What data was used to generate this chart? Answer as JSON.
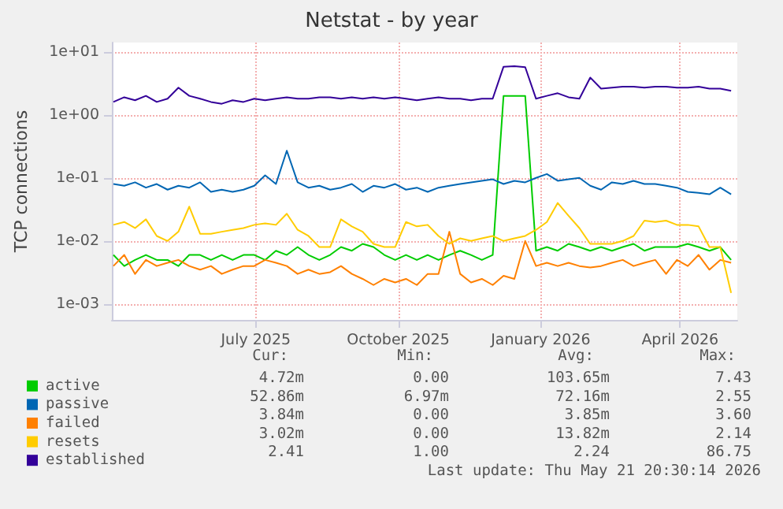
{
  "chart_data": {
    "type": "line",
    "title": "Netstat - by year",
    "ylabel": "TCP connections",
    "log": "y",
    "grid": true,
    "legend": "bottom left",
    "marker": "none",
    "line_style": "solid",
    "xlim": [
      "2025-03-30",
      "2026-05-08"
    ],
    "xticks": [
      {
        "value": "2025-07-01",
        "label": "July 2025"
      },
      {
        "value": "2025-10-01",
        "label": "October 2025"
      },
      {
        "value": "2026-01-01",
        "label": "January 2026"
      },
      {
        "value": "2026-04-01",
        "label": "April 2026"
      }
    ],
    "ylim": [
      0.00056,
      14
    ],
    "yticks": [
      {
        "value": 10,
        "label": "1e+01"
      },
      {
        "value": 1,
        "label": "1e+00"
      },
      {
        "value": 0.1,
        "label": "1e-01"
      },
      {
        "value": 0.01,
        "label": "1e-02"
      },
      {
        "value": 0.001,
        "label": "1e-03"
      }
    ],
    "x": [
      "2025-03-31",
      "2025-04-07",
      "2025-04-14",
      "2025-04-21",
      "2025-04-28",
      "2025-05-05",
      "2025-05-12",
      "2025-05-19",
      "2025-05-26",
      "2025-06-02",
      "2025-06-09",
      "2025-06-16",
      "2025-06-23",
      "2025-06-30",
      "2025-07-07",
      "2025-07-14",
      "2025-07-21",
      "2025-07-28",
      "2025-08-04",
      "2025-08-11",
      "2025-08-18",
      "2025-08-25",
      "2025-09-01",
      "2025-09-08",
      "2025-09-15",
      "2025-09-22",
      "2025-09-29",
      "2025-10-06",
      "2025-10-13",
      "2025-10-20",
      "2025-10-27",
      "2025-11-03",
      "2025-11-10",
      "2025-11-17",
      "2025-11-24",
      "2025-12-01",
      "2025-12-08",
      "2025-12-15",
      "2025-12-22",
      "2025-12-29",
      "2026-01-05",
      "2026-01-12",
      "2026-01-19",
      "2026-01-26",
      "2026-02-02",
      "2026-02-09",
      "2026-02-16",
      "2026-02-23",
      "2026-03-02",
      "2026-03-09",
      "2026-03-16",
      "2026-03-23",
      "2026-03-30",
      "2026-04-06",
      "2026-04-13",
      "2026-04-20",
      "2026-04-27",
      "2026-05-04"
    ],
    "series": [
      {
        "name": "active",
        "color": "#00cc00",
        "values": [
          0.006,
          0.004,
          0.005,
          0.006,
          0.005,
          0.005,
          0.004,
          0.006,
          0.006,
          0.005,
          0.006,
          0.005,
          0.006,
          0.006,
          0.005,
          0.007,
          0.006,
          0.008,
          0.006,
          0.005,
          0.006,
          0.008,
          0.007,
          0.009,
          0.008,
          0.006,
          0.005,
          0.006,
          0.005,
          0.006,
          0.005,
          0.006,
          0.007,
          0.006,
          0.005,
          0.006,
          2.0,
          2.0,
          2.0,
          0.007,
          0.008,
          0.007,
          0.009,
          0.008,
          0.007,
          0.008,
          0.007,
          0.008,
          0.009,
          0.007,
          0.008,
          0.008,
          0.008,
          0.009,
          0.008,
          0.007,
          0.008,
          0.005
        ]
      },
      {
        "name": "passive",
        "color": "#0066b3",
        "values": [
          0.08,
          0.075,
          0.085,
          0.07,
          0.08,
          0.065,
          0.075,
          0.07,
          0.085,
          0.06,
          0.065,
          0.06,
          0.065,
          0.075,
          0.11,
          0.08,
          0.27,
          0.085,
          0.07,
          0.075,
          0.065,
          0.07,
          0.08,
          0.06,
          0.075,
          0.07,
          0.08,
          0.065,
          0.07,
          0.06,
          0.07,
          0.075,
          0.08,
          0.085,
          0.09,
          0.095,
          0.08,
          0.09,
          0.085,
          0.1,
          0.115,
          0.09,
          0.095,
          0.1,
          0.075,
          0.065,
          0.085,
          0.08,
          0.09,
          0.08,
          0.08,
          0.075,
          0.07,
          0.06,
          0.058,
          0.055,
          0.07,
          0.055
        ]
      },
      {
        "name": "failed",
        "color": "#ff8000",
        "values": [
          0.004,
          0.006,
          0.003,
          0.005,
          0.004,
          0.0045,
          0.005,
          0.004,
          0.0035,
          0.004,
          0.003,
          0.0035,
          0.004,
          0.004,
          0.005,
          0.0045,
          0.004,
          0.003,
          0.0035,
          0.003,
          0.0032,
          0.004,
          0.003,
          0.0025,
          0.002,
          0.0025,
          0.0022,
          0.0025,
          0.002,
          0.003,
          0.003,
          0.014,
          0.003,
          0.0022,
          0.0025,
          0.002,
          0.0028,
          0.0025,
          0.01,
          0.004,
          0.0045,
          0.004,
          0.0045,
          0.004,
          0.0038,
          0.004,
          0.0045,
          0.005,
          0.004,
          0.0045,
          0.005,
          0.003,
          0.005,
          0.004,
          0.006,
          0.0035,
          0.005,
          0.0045
        ]
      },
      {
        "name": "resets",
        "color": "#ffcc00",
        "values": [
          0.018,
          0.02,
          0.016,
          0.022,
          0.012,
          0.01,
          0.014,
          0.035,
          0.013,
          0.013,
          0.014,
          0.015,
          0.016,
          0.018,
          0.019,
          0.018,
          0.027,
          0.015,
          0.012,
          0.008,
          0.008,
          0.022,
          0.017,
          0.014,
          0.009,
          0.008,
          0.008,
          0.02,
          0.017,
          0.018,
          0.012,
          0.009,
          0.011,
          0.01,
          0.011,
          0.012,
          0.01,
          0.011,
          0.012,
          0.015,
          0.02,
          0.04,
          0.025,
          0.016,
          0.009,
          0.009,
          0.009,
          0.01,
          0.012,
          0.021,
          0.02,
          0.021,
          0.018,
          0.018,
          0.017,
          0.008,
          0.008,
          0.0015
        ]
      },
      {
        "name": "established",
        "color": "#330099",
        "values": [
          1.6,
          1.9,
          1.7,
          2.0,
          1.6,
          1.8,
          2.7,
          2.0,
          1.8,
          1.6,
          1.5,
          1.7,
          1.6,
          1.8,
          1.7,
          1.8,
          1.9,
          1.8,
          1.8,
          1.9,
          1.9,
          1.8,
          1.9,
          1.8,
          1.9,
          1.8,
          1.9,
          1.8,
          1.7,
          1.8,
          1.9,
          1.8,
          1.8,
          1.7,
          1.8,
          1.8,
          5.8,
          5.9,
          5.7,
          1.8,
          2.0,
          2.2,
          1.9,
          1.8,
          3.9,
          2.6,
          2.7,
          2.8,
          2.8,
          2.7,
          2.8,
          2.8,
          2.7,
          2.7,
          2.8,
          2.6,
          2.6,
          2.4
        ]
      }
    ],
    "annotations": [
      "Cur:",
      "Min:",
      "Avg:",
      "Max:",
      "4.72m",
      "0.00",
      "103.65m",
      "7.43",
      "52.86m",
      "6.97m",
      "72.16m",
      "2.55",
      "3.84m",
      "0.00",
      "3.85m",
      "3.60",
      "3.02m",
      "0.00",
      "13.82m",
      "2.14",
      "2.41",
      "1.00",
      "2.24",
      "86.75",
      "Last update: Thu May 21 20:30:14 2026"
    ]
  }
}
